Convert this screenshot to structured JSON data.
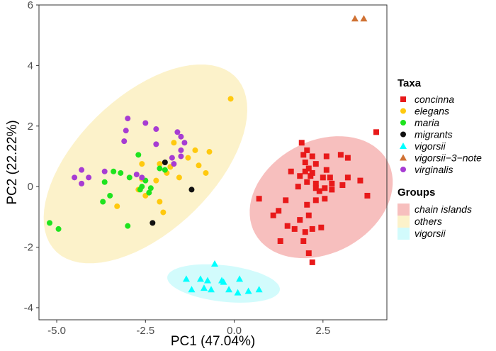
{
  "chart_data": {
    "type": "scatter",
    "xlabel": "PC1 (47.04%)",
    "ylabel": "PC2 (22.22%)",
    "xlim": [
      -5.5,
      4.3
    ],
    "ylim": [
      -4.4,
      6.0
    ],
    "x_ticks": [
      -5.0,
      -2.5,
      0.0,
      2.5
    ],
    "x_tick_labels": [
      "-5.0",
      "-2.5",
      "0.0",
      "2.5"
    ],
    "y_ticks": [
      -4,
      -2,
      0,
      2,
      4,
      6
    ],
    "y_tick_labels": [
      "-4",
      "-2",
      "0",
      "2",
      "4",
      "6"
    ],
    "grid": false,
    "legend_placement": "right",
    "taxa_legend_title": "Taxa",
    "groups_legend_title": "Groups",
    "series": [
      {
        "name": "concinna",
        "color": "#e8191a",
        "shape": "square",
        "points": [
          [
            1.9,
            1.45
          ],
          [
            2.05,
            1.2
          ],
          [
            1.95,
            1.05
          ],
          [
            2.2,
            1.0
          ],
          [
            2.6,
            1.0
          ],
          [
            3.0,
            1.05
          ],
          [
            3.2,
            0.95
          ],
          [
            2.0,
            0.8
          ],
          [
            2.3,
            0.75
          ],
          [
            2.1,
            0.6
          ],
          [
            2.6,
            0.55
          ],
          [
            2.0,
            0.5
          ],
          [
            2.2,
            0.45
          ],
          [
            1.6,
            0.5
          ],
          [
            1.85,
            0.35
          ],
          [
            2.15,
            0.35
          ],
          [
            2.5,
            0.3
          ],
          [
            2.7,
            0.3
          ],
          [
            3.2,
            0.3
          ],
          [
            3.55,
            0.2
          ],
          [
            2.05,
            0.15
          ],
          [
            2.3,
            0.1
          ],
          [
            2.75,
            0.1
          ],
          [
            3.05,
            0.05
          ],
          [
            1.8,
            0.0
          ],
          [
            2.3,
            -0.05
          ],
          [
            2.55,
            -0.05
          ],
          [
            2.75,
            -0.1
          ],
          [
            2.4,
            -0.15
          ],
          [
            3.75,
            -0.3
          ],
          [
            0.7,
            -0.4
          ],
          [
            1.45,
            -0.45
          ],
          [
            2.3,
            -0.45
          ],
          [
            2.55,
            -0.4
          ],
          [
            2.05,
            -0.6
          ],
          [
            1.25,
            -0.8
          ],
          [
            1.1,
            -0.95
          ],
          [
            2.1,
            -0.95
          ],
          [
            1.85,
            -1.1
          ],
          [
            1.5,
            -1.3
          ],
          [
            2.45,
            -1.35
          ],
          [
            1.7,
            -1.4
          ],
          [
            2.2,
            -1.4
          ],
          [
            2.0,
            -1.5
          ],
          [
            1.3,
            -1.8
          ],
          [
            1.95,
            -1.8
          ],
          [
            2.1,
            -2.2
          ],
          [
            2.2,
            -2.5
          ],
          [
            4.0,
            1.8
          ]
        ]
      },
      {
        "name": "elegans",
        "color": "#ffc90e",
        "shape": "circle",
        "points": [
          [
            -0.1,
            2.9
          ],
          [
            -1.7,
            1.45
          ],
          [
            -1.1,
            1.2
          ],
          [
            -0.7,
            1.15
          ],
          [
            -1.3,
            0.95
          ],
          [
            -2.6,
            0.75
          ],
          [
            -2.1,
            0.75
          ],
          [
            -1.0,
            0.7
          ],
          [
            -1.8,
            0.65
          ],
          [
            -1.9,
            0.45
          ],
          [
            -1.55,
            0.3
          ],
          [
            -0.8,
            0.45
          ],
          [
            -2.2,
            0.2
          ],
          [
            -2.6,
            0.25
          ],
          [
            -2.7,
            -0.1
          ],
          [
            -2.5,
            -0.3
          ],
          [
            -2.1,
            -0.5
          ],
          [
            -3.3,
            -0.65
          ],
          [
            -2.0,
            -0.85
          ]
        ]
      },
      {
        "name": "maria",
        "color": "#1ee31e",
        "shape": "circle",
        "points": [
          [
            -2.7,
            1.05
          ],
          [
            -3.2,
            0.45
          ],
          [
            -2.1,
            0.6
          ],
          [
            -3.4,
            0.5
          ],
          [
            -2.95,
            0.3
          ],
          [
            -2.5,
            0.2
          ],
          [
            -1.95,
            0.55
          ],
          [
            -3.65,
            0.15
          ],
          [
            -2.6,
            0.0
          ],
          [
            -2.65,
            -0.1
          ],
          [
            -2.35,
            -0.05
          ],
          [
            -2.4,
            -0.2
          ],
          [
            -3.5,
            -0.3
          ],
          [
            -3.7,
            -0.5
          ],
          [
            -5.2,
            -1.2
          ],
          [
            -4.95,
            -1.4
          ],
          [
            -3.0,
            -1.3
          ]
        ]
      },
      {
        "name": "migrants",
        "color": "#111111",
        "shape": "circle",
        "points": [
          [
            -1.95,
            0.8
          ],
          [
            -1.2,
            -0.1
          ],
          [
            -2.3,
            -1.2
          ]
        ]
      },
      {
        "name": "vigorsii",
        "color": "#00ffff",
        "shape": "triangle",
        "points": [
          [
            -0.55,
            -2.55
          ],
          [
            -1.35,
            -3.05
          ],
          [
            -0.95,
            -3.05
          ],
          [
            -0.75,
            -3.1
          ],
          [
            -0.35,
            -3.1
          ],
          [
            0.15,
            -3.05
          ],
          [
            -0.3,
            -3.15
          ],
          [
            -1.2,
            -3.4
          ],
          [
            -0.85,
            -3.35
          ],
          [
            -0.65,
            -3.4
          ],
          [
            -0.15,
            -3.4
          ],
          [
            0.4,
            -3.45
          ],
          [
            0.1,
            -3.5
          ],
          [
            0.7,
            -3.4
          ]
        ]
      },
      {
        "name": "vigorsii−3−note",
        "color": "#d07234",
        "shape": "triangle",
        "points": [
          [
            3.4,
            5.55
          ],
          [
            3.65,
            5.55
          ]
        ]
      },
      {
        "name": "virginalis",
        "color": "#a73cd3",
        "shape": "circle",
        "points": [
          [
            -3.0,
            2.25
          ],
          [
            -2.5,
            2.1
          ],
          [
            -3.05,
            1.85
          ],
          [
            -2.2,
            1.9
          ],
          [
            -1.6,
            1.8
          ],
          [
            -1.5,
            1.65
          ],
          [
            -1.4,
            1.45
          ],
          [
            -3.1,
            1.5
          ],
          [
            -2.2,
            1.4
          ],
          [
            -1.5,
            1.2
          ],
          [
            -1.5,
            1.0
          ],
          [
            -1.75,
            0.95
          ],
          [
            -1.7,
            0.75
          ],
          [
            -4.3,
            0.55
          ],
          [
            -3.65,
            0.5
          ],
          [
            -4.5,
            0.3
          ],
          [
            -4.1,
            0.3
          ],
          [
            -4.3,
            0.1
          ],
          [
            -2.75,
            0.4
          ],
          [
            -2.6,
            0.3
          ]
        ]
      }
    ],
    "groups": [
      {
        "name": "chain islands",
        "color": "#f4a9a8",
        "center": [
          2.45,
          -0.35
        ],
        "rx": 1.75,
        "ry": 2.25,
        "angle_deg": -45
      },
      {
        "name": "others",
        "color": "#fbedb8",
        "center": [
          -2.5,
          0.75
        ],
        "rx": 3.85,
        "ry": 2.05,
        "angle_deg": 52
      },
      {
        "name": "vigorsii",
        "color": "#c3fafb",
        "center": [
          -0.3,
          -3.2
        ],
        "rx": 1.6,
        "ry": 0.6,
        "angle_deg": -8
      }
    ]
  }
}
